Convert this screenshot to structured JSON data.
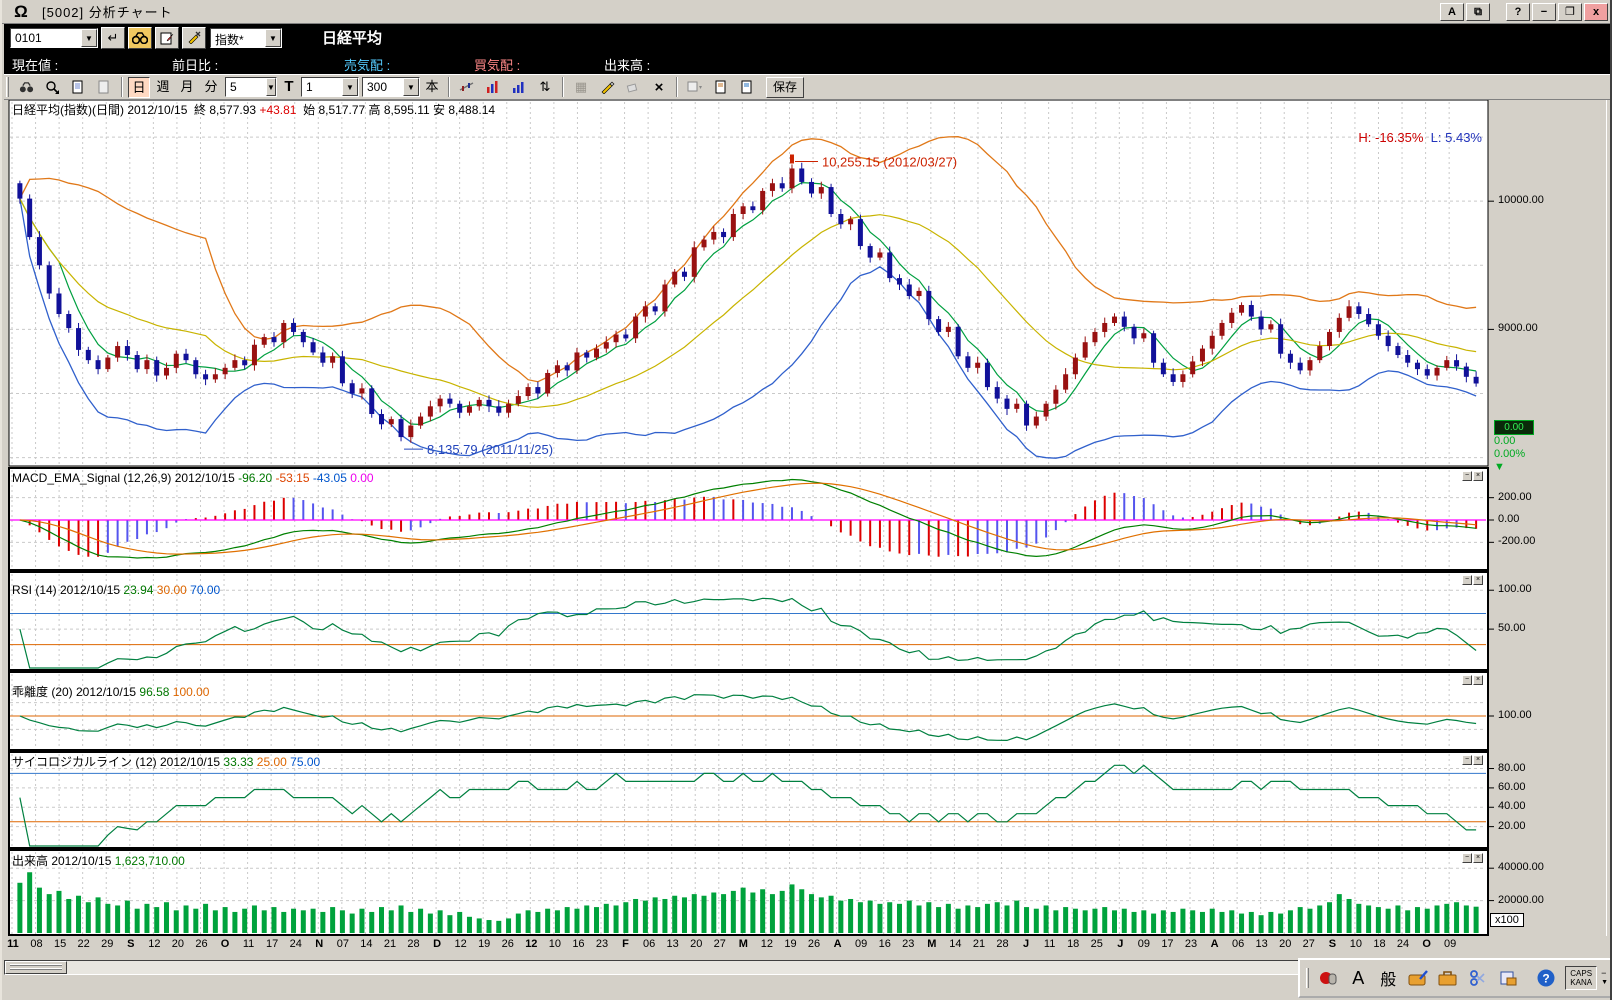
{
  "titlebar": {
    "title": "[5002]  分析チャート",
    "logo_glyph": "Ω",
    "btn_a": "A",
    "btn_help": "?",
    "btn_min": "−",
    "btn_restore": "❐",
    "btn_close": "x"
  },
  "symbol_bar": {
    "code_value": "0101",
    "enter_glyph": "↵",
    "type_value": "指数*",
    "name": "日経平均",
    "dropdown_glyph": "▼"
  },
  "quote_bar": {
    "items": [
      {
        "label": "現在値 :",
        "color": "#ffffff",
        "x": 8
      },
      {
        "label": "前日比 :",
        "color": "#ffffff",
        "x": 168
      },
      {
        "label": "売気配 :",
        "color": "#55ccff",
        "x": 340
      },
      {
        "label": "買気配 :",
        "color": "#ff8888",
        "x": 470
      },
      {
        "label": "出来高 :",
        "color": "#ffffff",
        "x": 600
      }
    ]
  },
  "chart_toolbar": {
    "day": "日",
    "week": "週",
    "month": "月",
    "minute": "分",
    "minute_select": "5",
    "tick": "T",
    "interval_select": "1",
    "bars_select": "300",
    "bars_unit": "本",
    "updown_glyph": "⇅",
    "grid_glyph": "▦",
    "delete_glyph": "×",
    "save": "保存"
  },
  "main_chart": {
    "header_parts": [
      {
        "t": "日経平均(指数)(日間) 2012/10/15  終 8,577.93 ",
        "c": "#000000"
      },
      {
        "t": "+43.81",
        "c": "#dd0000"
      },
      {
        "t": "  始 8,517.77 高 8,595.11 安 8,488.14",
        "c": "#000000"
      }
    ],
    "h_label": "H: -16.35%",
    "l_label": "L: 5.43%",
    "h_color": "#cc0000",
    "l_color": "#2233bb",
    "annotation_high": "10,255.15 (2012/03/27)",
    "annotation_low": "8,135.79 (2011/11/25)",
    "side_values": [
      "0.00",
      "0.00",
      "0.00%"
    ],
    "side_arrow": "▼",
    "yticks": [
      {
        "v": 10000,
        "label": "10000.00"
      },
      {
        "v": 9000,
        "label": "9000.00"
      }
    ],
    "grid_values": [
      10500,
      10000,
      9500,
      9000,
      8500,
      8000
    ]
  },
  "panels": {
    "macd": {
      "header_parts": [
        {
          "t": "MACD_EMA_Signal (12,26,9) 2012/10/15 ",
          "c": "#000000"
        },
        {
          "t": "-96.20",
          "c": "#007700"
        },
        {
          "t": " -53.15",
          "c": "#dd4400"
        },
        {
          "t": " -43.05",
          "c": "#0055cc"
        },
        {
          "t": " 0.00",
          "c": "#ee00ee"
        }
      ],
      "yticks": [
        {
          "v": 200,
          "label": "200.00"
        },
        {
          "v": 0,
          "label": "0.00"
        },
        {
          "v": -200,
          "label": "-200.00"
        }
      ]
    },
    "rsi": {
      "header_parts": [
        {
          "t": "RSI (14) 2012/10/15 ",
          "c": "#000000"
        },
        {
          "t": "23.94",
          "c": "#007700"
        },
        {
          "t": " 30.00",
          "c": "#dd6600"
        },
        {
          "t": " 70.00",
          "c": "#0055cc"
        }
      ],
      "yticks": [
        {
          "v": 100,
          "label": "100.00"
        },
        {
          "v": 50,
          "label": "50.00"
        }
      ],
      "hlines": [
        {
          "v": 70,
          "c": "#3377cc"
        },
        {
          "v": 30,
          "c": "#dd6600"
        }
      ]
    },
    "dev": {
      "header_parts": [
        {
          "t": "乖離度 (20) 2012/10/15 ",
          "c": "#000000"
        },
        {
          "t": "96.58",
          "c": "#007700"
        },
        {
          "t": " 100.00",
          "c": "#dd6600"
        }
      ],
      "yticks": [
        {
          "v": 100,
          "label": "100.00"
        }
      ],
      "hlines": [
        {
          "v": 100,
          "c": "#dd6600"
        }
      ]
    },
    "psy": {
      "header_parts": [
        {
          "t": "サイコロジカルライン (12) 2012/10/15 ",
          "c": "#000000"
        },
        {
          "t": "33.33",
          "c": "#007700"
        },
        {
          "t": " 25.00",
          "c": "#dd6600"
        },
        {
          "t": " 75.00",
          "c": "#0055cc"
        }
      ],
      "yticks": [
        {
          "v": 80,
          "label": "80.00"
        },
        {
          "v": 60,
          "label": "60.00"
        },
        {
          "v": 40,
          "label": "40.00"
        },
        {
          "v": 20,
          "label": "20.00"
        }
      ],
      "hlines": [
        {
          "v": 75,
          "c": "#3377cc"
        },
        {
          "v": 25,
          "c": "#dd6600"
        }
      ]
    },
    "vol": {
      "header_parts": [
        {
          "t": "出来高 2012/10/15 ",
          "c": "#000000"
        },
        {
          "t": "1,623,710.00",
          "c": "#007700"
        }
      ],
      "yticks": [
        {
          "v": 40000,
          "label": "40000.00"
        },
        {
          "v": 20000,
          "label": "20000.00"
        }
      ],
      "unit": "x100"
    },
    "button_min": "−",
    "button_close": "×"
  },
  "xaxis": {
    "labels": [
      "11",
      "08",
      "15",
      "22",
      "29",
      "S",
      "12",
      "20",
      "26",
      "O",
      "11",
      "17",
      "24",
      "N",
      "07",
      "14",
      "21",
      "28",
      "D",
      "12",
      "19",
      "26",
      "12",
      "10",
      "16",
      "23",
      "F",
      "06",
      "13",
      "20",
      "27",
      "M",
      "12",
      "19",
      "26",
      "A",
      "09",
      "16",
      "23",
      "M",
      "14",
      "21",
      "28",
      "J",
      "11",
      "18",
      "25",
      "J",
      "09",
      "17",
      "23",
      "A",
      "06",
      "13",
      "20",
      "27",
      "S",
      "10",
      "18",
      "24",
      "O",
      "09"
    ],
    "bold": [
      0,
      5,
      9,
      13,
      18,
      22,
      26,
      31,
      35,
      39,
      43,
      47,
      51,
      56,
      60
    ]
  },
  "bottom": {
    "ime_a": "A",
    "ime_han": "般",
    "caps": "CAPS",
    "kana": "KANA",
    "help": "?",
    "min": "−",
    "arrow": "▼"
  },
  "colors": {
    "candle_up": "#991111",
    "candle_down": "#111199",
    "ma_short": "#00a040",
    "ma_mid": "#c8b400",
    "band_up": "#e07818",
    "band_dn": "#3060cc",
    "macd_line": "#008000",
    "signal_line": "#e07000",
    "zero_line": "#ff00ff",
    "hist_pos": "#dd0000",
    "hist_neg": "#5555ee",
    "indicator_line": "#008040",
    "volume_bar": "#00a23c",
    "grid": "#c9c9c9"
  },
  "chart_data": [
    {
      "type": "candlestick",
      "name": "日経平均(指数)(日間) close path (approx, 2011/08 - 2012/10)",
      "high_point": {
        "value": 10255.15,
        "date": "2012/03/27"
      },
      "low_point": {
        "value": 8135.79,
        "date": "2011/11/25"
      },
      "last": {
        "date": "2012/10/15",
        "close": 8577.93,
        "change": 43.81,
        "open": 8517.77,
        "high": 8595.11,
        "low": 8488.14
      },
      "ylim": [
        7950,
        10680
      ],
      "closes": [
        10020,
        9720,
        9500,
        9280,
        9120,
        9010,
        8840,
        8760,
        8690,
        8780,
        8870,
        8800,
        8690,
        8760,
        8640,
        8700,
        8810,
        8760,
        8650,
        8610,
        8650,
        8700,
        8760,
        8720,
        8880,
        8940,
        8900,
        9050,
        8980,
        8900,
        8820,
        8740,
        8790,
        8580,
        8500,
        8540,
        8340,
        8260,
        8300,
        8160,
        8250,
        8320,
        8400,
        8460,
        8420,
        8350,
        8400,
        8450,
        8400,
        8350,
        8420,
        8480,
        8550,
        8500,
        8660,
        8720,
        8680,
        8820,
        8780,
        8850,
        8900,
        8960,
        8930,
        9100,
        9180,
        9140,
        9350,
        9450,
        9410,
        9640,
        9700,
        9760,
        9720,
        9900,
        9960,
        9930,
        10080,
        10140,
        10100,
        10255,
        10150,
        10060,
        10110,
        9900,
        9820,
        9860,
        9650,
        9560,
        9600,
        9400,
        9350,
        9260,
        9300,
        9080,
        8980,
        9020,
        8790,
        8700,
        8740,
        8550,
        8460,
        8380,
        8420,
        8250,
        8320,
        8420,
        8530,
        8650,
        8780,
        8900,
        8980,
        9050,
        9100,
        9020,
        8930,
        8970,
        8740,
        8650,
        8590,
        8650,
        8750,
        8850,
        8950,
        9050,
        9130,
        9190,
        9100,
        9000,
        9040,
        8810,
        8740,
        8680,
        8760,
        8870,
        8980,
        9090,
        9180,
        9120,
        9040,
        8950,
        8870,
        8800,
        8740,
        8690,
        8640,
        8700,
        8760,
        8710,
        8630,
        8578
      ]
    },
    {
      "type": "bar",
      "name": "出来高 (x100)",
      "last_value": "1,623,710.00",
      "ylim": [
        0,
        50000
      ],
      "values": [
        31000,
        37500,
        28000,
        24000,
        26000,
        21000,
        23000,
        19000,
        22000,
        18000,
        17000,
        20000,
        15000,
        18000,
        16000,
        19000,
        14000,
        17000,
        15000,
        18000,
        14000,
        16000,
        13000,
        15000,
        17000,
        14000,
        16000,
        13000,
        15000,
        14000,
        15000,
        13000,
        16000,
        14000,
        12000,
        15000,
        13000,
        16000,
        14000,
        17000,
        13000,
        15000,
        12000,
        14000,
        11000,
        13000,
        10000,
        9000,
        8000,
        7500,
        9000,
        12000,
        14000,
        13000,
        15000,
        14000,
        16000,
        15000,
        17000,
        16000,
        18000,
        17000,
        19000,
        21000,
        20000,
        22000,
        21000,
        23000,
        22000,
        24000,
        23000,
        25000,
        24000,
        26000,
        28000,
        25000,
        27000,
        24000,
        26000,
        30000,
        27000,
        24000,
        22000,
        23000,
        20000,
        21000,
        19000,
        20000,
        18000,
        19000,
        18000,
        20000,
        17000,
        19000,
        16000,
        18000,
        15000,
        17000,
        16000,
        18000,
        19000,
        17000,
        20000,
        16000,
        15000,
        17000,
        14000,
        16000,
        15000,
        14000,
        15000,
        16000,
        14000,
        15000,
        13000,
        14000,
        12000,
        14000,
        13000,
        15000,
        14000,
        13000,
        15000,
        13000,
        14000,
        12000,
        13000,
        11000,
        13000,
        12000,
        14000,
        16000,
        15000,
        17000,
        19000,
        24000,
        21000,
        18000,
        17000,
        16000,
        15000,
        17000,
        14000,
        16000,
        15000,
        17000,
        18000,
        19000,
        17000,
        16237
      ]
    }
  ]
}
